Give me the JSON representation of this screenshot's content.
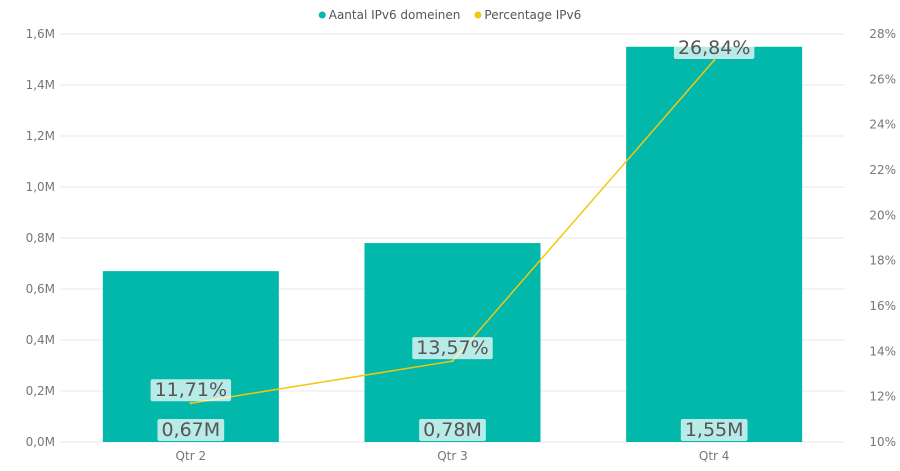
{
  "chart_data": {
    "type": "bar",
    "categories": [
      "Qtr 2",
      "Qtr 3",
      "Qtr 4"
    ],
    "series": [
      {
        "name": "Aantal IPv6 domeinen",
        "kind": "bar",
        "axis": "left",
        "color": "#01b8aa",
        "values": [
          670000,
          780000,
          1550000
        ],
        "labels": [
          "0,67M",
          "0,78M",
          "1,55M"
        ]
      },
      {
        "name": "Percentage IPv6",
        "kind": "line",
        "axis": "right",
        "color": "#f2c80f",
        "values": [
          11.71,
          13.57,
          26.84
        ],
        "labels": [
          "11,71%",
          "13,57%",
          "26,84%"
        ]
      }
    ],
    "y_left": {
      "ylim": [
        0,
        1600000
      ],
      "ticks": [
        0,
        200000,
        400000,
        600000,
        800000,
        1000000,
        1200000,
        1400000,
        1600000
      ],
      "tick_labels": [
        "0,0M",
        "0,2M",
        "0,4M",
        "0,6M",
        "0,8M",
        "1,0M",
        "1,2M",
        "1,4M",
        "1,6M"
      ]
    },
    "y_right": {
      "ylim": [
        10,
        28
      ],
      "ticks": [
        10,
        12,
        14,
        16,
        18,
        20,
        22,
        24,
        26,
        28
      ],
      "tick_labels": [
        "10%",
        "12%",
        "14%",
        "16%",
        "18%",
        "20%",
        "22%",
        "24%",
        "26%",
        "28%"
      ]
    },
    "legend_position": "top-center",
    "grid": "horizontal"
  }
}
